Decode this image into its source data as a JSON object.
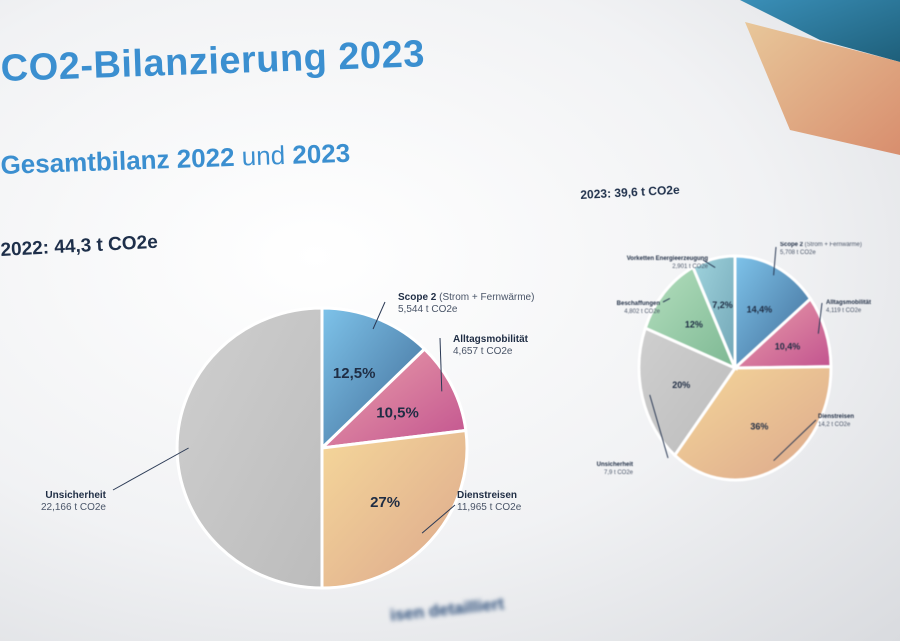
{
  "title": "CO2-Bilanzierung 2023",
  "subtitle": {
    "part1": "Gesamtbilanz 2022",
    "part2": "und",
    "part3": "2023"
  },
  "footer_fragment": "isen detailliert",
  "colors": {
    "title": "#3b8fd0",
    "total": "#1e2f4a"
  },
  "chart_data": [
    {
      "type": "pie",
      "title": "2022: 44,3 t CO2e",
      "slices": [
        {
          "label": "Scope 2",
          "sublabel": "(Strom + Fernwärme)",
          "value_text": "5,544 t CO2e",
          "percent_text": "12,5%",
          "value": 12.5
        },
        {
          "label": "Alltagsmobilität",
          "sublabel": "",
          "value_text": "4,657 t CO2e",
          "percent_text": "10,5%",
          "value": 10.5
        },
        {
          "label": "Dienstreisen",
          "sublabel": "",
          "value_text": "11,965 t CO2e",
          "percent_text": "27%",
          "value": 27
        },
        {
          "label": "Unsicherheit",
          "sublabel": "",
          "value_text": "22,166  t CO2e",
          "percent_text": "",
          "value": 50
        }
      ]
    },
    {
      "type": "pie",
      "title": "2023: 39,6 t CO2e",
      "slices": [
        {
          "label": "Scope 2",
          "sublabel": "(Strom + Fernwärme)",
          "value_text": "5,708 t CO2e",
          "percent_text": "14,4%",
          "value": 14.4
        },
        {
          "label": "Alltagsmobilität",
          "sublabel": "",
          "value_text": "4,119 t CO2e",
          "percent_text": "10,4%",
          "value": 10.4
        },
        {
          "label": "Dienstreisen",
          "sublabel": "",
          "value_text": "14,2 t CO2e",
          "percent_text": "36%",
          "value": 36
        },
        {
          "label": "Unsicherheit",
          "sublabel": "",
          "value_text": "7,9 t CO2e",
          "percent_text": "20%",
          "value": 20
        },
        {
          "label": "Beschaffungen",
          "sublabel": "",
          "value_text": "4,802 t CO2e",
          "percent_text": "12%",
          "value": 12
        },
        {
          "label": "Vorketten Energieerzeugung",
          "sublabel": "",
          "value_text": "2,901 t CO2e",
          "percent_text": "7,2%",
          "value": 7.2
        }
      ]
    }
  ]
}
